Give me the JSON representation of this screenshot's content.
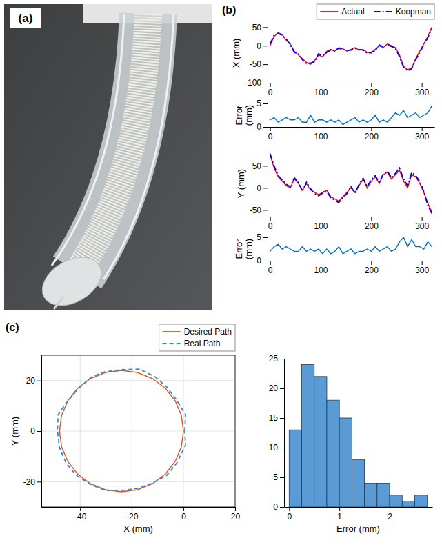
{
  "chart_data": [
    {
      "panel": "(a)",
      "type": "image"
    },
    {
      "panel": "(b)",
      "type": "line",
      "legend": "top",
      "x": [
        0,
        8,
        16,
        24,
        32,
        40,
        48,
        56,
        64,
        72,
        80,
        88,
        96,
        104,
        112,
        120,
        128,
        136,
        144,
        152,
        160,
        168,
        176,
        184,
        192,
        200,
        208,
        216,
        224,
        232,
        240,
        248,
        256,
        264,
        272,
        280,
        288,
        296,
        304,
        312,
        320
      ],
      "xlim": [
        -5,
        325
      ],
      "xticks": [
        0,
        100,
        200,
        300
      ],
      "ylabel": "X (mm)",
      "ylim": [
        -100,
        60
      ],
      "yticks": [
        -100,
        -50,
        0,
        50
      ],
      "series": [
        {
          "name": "Actual",
          "color": "#ff0000",
          "line_style": "solid",
          "values": [
            0,
            25,
            35,
            30,
            15,
            5,
            -15,
            -25,
            -35,
            -45,
            -50,
            -40,
            -25,
            -30,
            -15,
            -10,
            -15,
            -5,
            -8,
            -15,
            -10,
            -5,
            -12,
            -10,
            -18,
            -20,
            -10,
            0,
            -5,
            5,
            0,
            -5,
            -25,
            -55,
            -65,
            -60,
            -35,
            -15,
            5,
            25,
            50
          ]
        },
        {
          "name": "Koopman",
          "color": "#0000ff",
          "line_style": "dashdot",
          "values": [
            5,
            28,
            33,
            28,
            18,
            2,
            -18,
            -22,
            -38,
            -48,
            -47,
            -43,
            -22,
            -28,
            -18,
            -12,
            -13,
            -7,
            -10,
            -13,
            -12,
            -7,
            -10,
            -12,
            -20,
            -18,
            -13,
            2,
            -3,
            3,
            -2,
            -8,
            -30,
            -58,
            -68,
            -62,
            -38,
            -18,
            2,
            22,
            46
          ]
        }
      ]
    },
    {
      "type": "line",
      "x": [
        0,
        8,
        16,
        24,
        32,
        40,
        48,
        56,
        64,
        72,
        80,
        88,
        96,
        104,
        112,
        120,
        128,
        136,
        144,
        152,
        160,
        168,
        176,
        184,
        192,
        200,
        208,
        216,
        224,
        232,
        240,
        248,
        256,
        264,
        272,
        280,
        288,
        296,
        304,
        312,
        320
      ],
      "xlim": [
        -5,
        325
      ],
      "xticks": [
        0,
        100,
        200,
        300
      ],
      "ylabel": "Error (mm)",
      "ylim": [
        0,
        5
      ],
      "yticks": [
        0,
        5
      ],
      "series": [
        {
          "color": "#0072bd",
          "line_style": "solid",
          "values": [
            1.5,
            2,
            1,
            1.5,
            2,
            1.5,
            1.5,
            2,
            1,
            1,
            2.5,
            1,
            1.5,
            1.5,
            1,
            1.5,
            1,
            1.5,
            0.5,
            1,
            1.5,
            2,
            1,
            1.5,
            1,
            1.5,
            2.5,
            1,
            1.5,
            1,
            2,
            3,
            2.5,
            3.5,
            2,
            2.5,
            3,
            2,
            2.5,
            3,
            4.5
          ]
        }
      ]
    },
    {
      "type": "line",
      "x": [
        0,
        8,
        16,
        24,
        32,
        40,
        48,
        56,
        64,
        72,
        80,
        88,
        96,
        104,
        112,
        120,
        128,
        136,
        144,
        152,
        160,
        168,
        176,
        184,
        192,
        200,
        208,
        216,
        224,
        232,
        240,
        248,
        256,
        264,
        272,
        280,
        288,
        296,
        304,
        312,
        320
      ],
      "xlim": [
        -5,
        325
      ],
      "xticks": [
        0,
        100,
        200,
        300
      ],
      "ylabel": "Y (mm)",
      "ylim": [
        -65,
        85
      ],
      "yticks": [
        -50,
        0,
        50
      ],
      "series": [
        {
          "name": "Actual",
          "color": "#ff0000",
          "line_style": "solid",
          "values": [
            75,
            45,
            25,
            15,
            5,
            0,
            20,
            10,
            -5,
            10,
            -5,
            -10,
            -15,
            -10,
            -5,
            -20,
            -25,
            -30,
            -20,
            -10,
            0,
            -10,
            5,
            20,
            0,
            15,
            25,
            10,
            30,
            35,
            20,
            30,
            40,
            15,
            0,
            30,
            25,
            10,
            -10,
            -35,
            -55
          ]
        },
        {
          "name": "Koopman",
          "color": "#0000ff",
          "line_style": "dashdot",
          "values": [
            78,
            50,
            28,
            18,
            8,
            3,
            23,
            12,
            -8,
            13,
            -2,
            -13,
            -18,
            -12,
            -8,
            -22,
            -28,
            -33,
            -22,
            -13,
            3,
            -12,
            8,
            22,
            3,
            18,
            28,
            13,
            32,
            38,
            23,
            33,
            45,
            20,
            5,
            35,
            28,
            15,
            -8,
            -40,
            -58
          ]
        }
      ]
    },
    {
      "type": "line",
      "x": [
        0,
        8,
        16,
        24,
        32,
        40,
        48,
        56,
        64,
        72,
        80,
        88,
        96,
        104,
        112,
        120,
        128,
        136,
        144,
        152,
        160,
        168,
        176,
        184,
        192,
        200,
        208,
        216,
        224,
        232,
        240,
        248,
        256,
        264,
        272,
        280,
        288,
        296,
        304,
        312,
        320
      ],
      "xlim": [
        -5,
        325
      ],
      "xticks": [
        0,
        100,
        200,
        300
      ],
      "ylabel": "Error (mm)",
      "ylim": [
        0,
        5
      ],
      "yticks": [
        0,
        5
      ],
      "series": [
        {
          "color": "#0072bd",
          "line_style": "solid",
          "values": [
            2,
            3,
            3.5,
            2.5,
            3,
            2.5,
            2,
            2,
            3,
            2,
            2.5,
            2,
            2.5,
            1.5,
            2.5,
            1.5,
            2,
            3,
            1.5,
            2,
            2.5,
            1.5,
            2,
            2,
            2.5,
            2,
            3,
            2,
            2.5,
            3,
            2,
            2.5,
            4,
            5,
            3,
            4.5,
            3,
            3,
            2.5,
            4,
            3
          ]
        }
      ]
    },
    {
      "panel": "(c)",
      "type": "line",
      "legend": "top-right",
      "grid": true,
      "xlabel": "X (mm)",
      "xlim": [
        -55,
        20
      ],
      "xticks": [
        -40,
        -20,
        0,
        20
      ],
      "ylabel": "Y (mm)",
      "ylim": [
        -30,
        30
      ],
      "yticks": [
        -20,
        0,
        20
      ],
      "series": [
        {
          "name": "Desired Path",
          "color": "#e8501e",
          "line_style": "solid",
          "x": [
            0,
            -0.82,
            -3.22,
            -7.03,
            -12,
            -17.79,
            -24,
            -30.21,
            -36,
            -40.97,
            -44.78,
            -47.18,
            -48,
            -47.18,
            -44.78,
            -40.97,
            -36,
            -30.21,
            -24,
            -17.79,
            -12,
            -7.03,
            -3.22,
            -0.82,
            0
          ],
          "values": [
            0,
            6.21,
            12,
            16.97,
            20.78,
            23.18,
            24,
            23.18,
            20.78,
            16.97,
            12,
            6.21,
            0,
            -6.21,
            -12,
            -16.97,
            -20.78,
            -23.18,
            -24,
            -23.18,
            -20.78,
            -16.97,
            -12,
            -6.21,
            0
          ]
        },
        {
          "name": "Real Path",
          "color": "#2f8bd8",
          "line_style": "dashed",
          "x": [
            0.5,
            0.8,
            -2.8,
            -6.5,
            -11,
            -17,
            -24,
            -30.5,
            -35.5,
            -41,
            -45.5,
            -48.5,
            -48.8,
            -48,
            -45.5,
            -41.5,
            -35.5,
            -30,
            -24,
            -18,
            -12,
            -6.5,
            -2.5,
            0.8,
            0.5
          ],
          "values": [
            0,
            6.5,
            12.5,
            17.5,
            21.5,
            24.5,
            24.3,
            23.4,
            21.5,
            16.5,
            11,
            6.5,
            0.3,
            -6.5,
            -12.5,
            -17.5,
            -21.3,
            -23.5,
            -23.5,
            -22.7,
            -20.5,
            -17.5,
            -12.5,
            -5.5,
            0
          ]
        }
      ]
    },
    {
      "type": "histogram",
      "color": "#5b9bd5",
      "xlabel": "Error (mm)",
      "xlim": [
        -0.1,
        2.85
      ],
      "xticks": [
        0,
        1,
        2
      ],
      "ylim": [
        0,
        25
      ],
      "yticks": [
        0,
        5,
        10,
        15,
        20,
        25
      ],
      "bins": [
        0,
        0.25,
        0.5,
        0.75,
        1,
        1.25,
        1.5,
        1.75,
        2,
        2.25,
        2.5,
        2.75
      ],
      "values": [
        13,
        24,
        22,
        18,
        15,
        8,
        4,
        4,
        2,
        1,
        2
      ]
    }
  ]
}
